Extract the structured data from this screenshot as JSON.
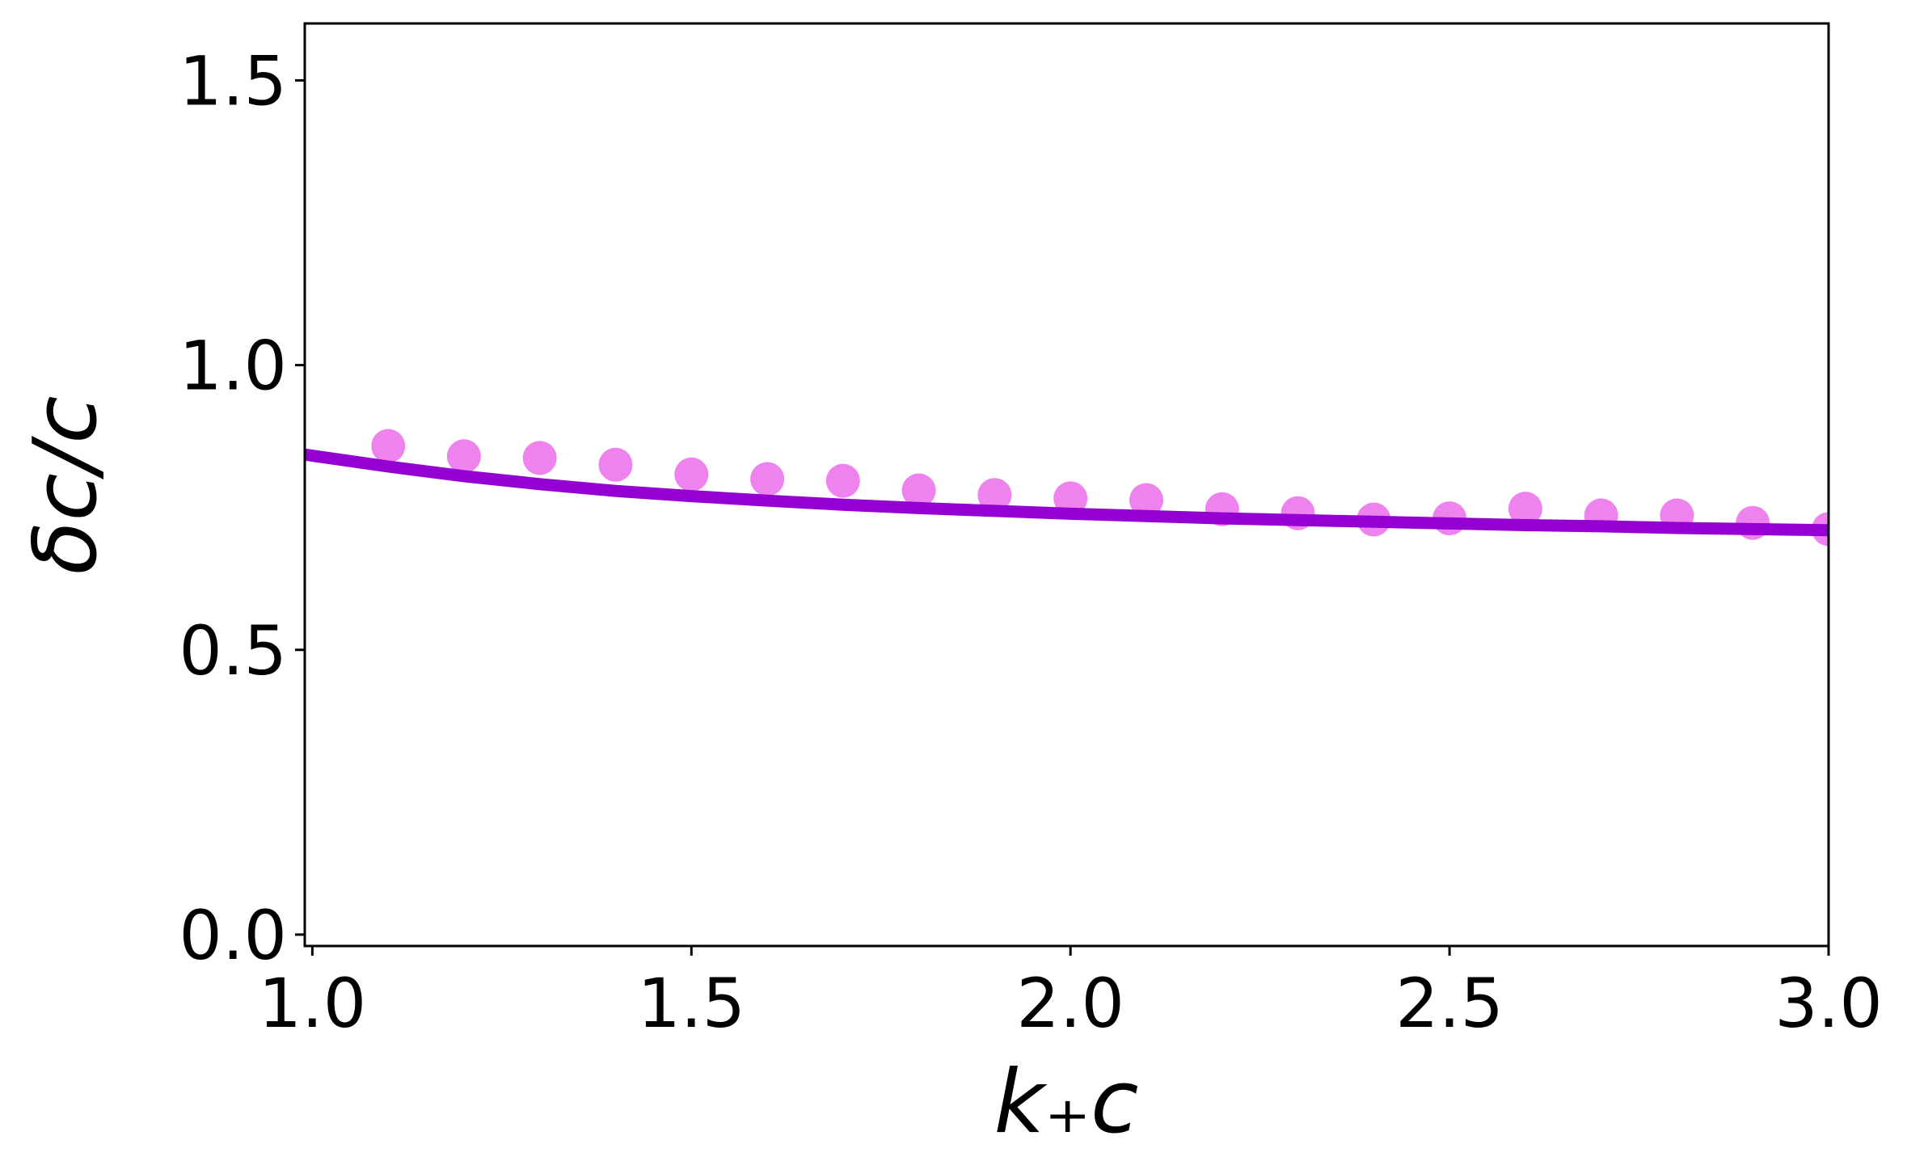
{
  "chart_data": {
    "type": "scatter",
    "title": "",
    "xlabel": "k₊c",
    "ylabel": "δc/c",
    "xlim": [
      0.99,
      3.0
    ],
    "ylim": [
      -0.02,
      1.6
    ],
    "xticks": [
      1.0,
      1.5,
      2.0,
      2.5,
      3.0
    ],
    "xtick_labels": [
      "1.0",
      "1.5",
      "2.0",
      "2.5",
      "3.0"
    ],
    "yticks": [
      0.0,
      0.5,
      1.0,
      1.5
    ],
    "ytick_labels": [
      "0.0",
      "0.5",
      "1.0",
      "1.5"
    ],
    "grid": false,
    "legend": "none",
    "series": [
      {
        "kind": "points",
        "color": "#ee82ee",
        "x": [
          1.1,
          1.2,
          1.3,
          1.4,
          1.5,
          1.6,
          1.7,
          1.8,
          1.9,
          2.0,
          2.1,
          2.2,
          2.3,
          2.4,
          2.5,
          2.6,
          2.7,
          2.8,
          2.9,
          3.0
        ],
        "y": [
          0.858,
          0.84,
          0.837,
          0.825,
          0.808,
          0.8,
          0.797,
          0.78,
          0.772,
          0.766,
          0.763,
          0.747,
          0.74,
          0.729,
          0.731,
          0.748,
          0.736,
          0.736,
          0.723,
          0.712
        ]
      },
      {
        "kind": "line",
        "color": "#9400d3",
        "x": [
          0.99,
          1.1,
          1.2,
          1.3,
          1.4,
          1.5,
          1.6,
          1.7,
          1.8,
          1.9,
          2.0,
          2.1,
          2.2,
          2.3,
          2.4,
          2.5,
          2.6,
          2.7,
          2.8,
          2.9,
          3.0
        ],
        "y": [
          0.843,
          0.822,
          0.805,
          0.791,
          0.779,
          0.77,
          0.762,
          0.755,
          0.749,
          0.744,
          0.739,
          0.735,
          0.731,
          0.728,
          0.725,
          0.722,
          0.719,
          0.717,
          0.714,
          0.712,
          0.71
        ]
      }
    ]
  }
}
